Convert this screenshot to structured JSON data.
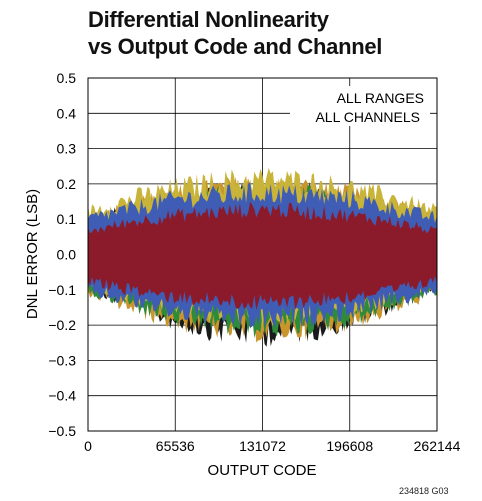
{
  "header": {
    "title_line1": "Differential Nonlinearity",
    "title_line2": "vs Output Code and Channel"
  },
  "figure_id": "234818 G03",
  "chart_data": {
    "type": "area",
    "title": "Differential Nonlinearity vs Output Code and Channel",
    "xlabel": "OUTPUT CODE",
    "ylabel": "DNL ERROR (LSB)",
    "xlim": [
      0,
      262144
    ],
    "ylim": [
      -0.5,
      0.5
    ],
    "x_ticks": [
      "0",
      "65536",
      "131072",
      "196608",
      "262144"
    ],
    "y_ticks": [
      "0.5",
      "0.4",
      "0.3",
      "0.2",
      "0.1",
      "0.0",
      "−0.1",
      "−0.2",
      "−0.3",
      "−0.4",
      "−0.5"
    ],
    "grid": true,
    "annotations": [
      "ALL RANGES",
      "ALL CHANNELS"
    ],
    "series_colors": [
      "#1a1a1a",
      "#c9952c",
      "#2e8b3a",
      "#c9b43a",
      "#3f5db5",
      "#8b1a2b"
    ],
    "series": [
      {
        "x": [
          0,
          32768,
          65536,
          98304,
          131072,
          163840,
          196608,
          229376,
          262144
        ],
        "upper": [
          0.1,
          0.14,
          0.17,
          0.19,
          0.2,
          0.19,
          0.17,
          0.14,
          0.1
        ],
        "lower": [
          -0.1,
          -0.15,
          -0.2,
          -0.23,
          -0.24,
          -0.23,
          -0.2,
          -0.15,
          -0.1
        ]
      },
      {
        "x": [
          0,
          32768,
          65536,
          98304,
          131072,
          163840,
          196608,
          229376,
          262144
        ],
        "upper": [
          0.11,
          0.15,
          0.18,
          0.2,
          0.21,
          0.2,
          0.18,
          0.15,
          0.11
        ],
        "lower": [
          -0.11,
          -0.16,
          -0.2,
          -0.22,
          -0.23,
          -0.22,
          -0.2,
          -0.16,
          -0.11
        ]
      },
      {
        "x": [
          0,
          32768,
          65536,
          98304,
          131072,
          163840,
          196608,
          229376,
          262144
        ],
        "upper": [
          0.1,
          0.14,
          0.16,
          0.18,
          0.19,
          0.18,
          0.16,
          0.14,
          0.1
        ],
        "lower": [
          -0.11,
          -0.15,
          -0.19,
          -0.21,
          -0.22,
          -0.21,
          -0.19,
          -0.15,
          -0.11
        ]
      },
      {
        "x": [
          0,
          32768,
          65536,
          98304,
          131072,
          163840,
          196608,
          229376,
          262144
        ],
        "upper": [
          0.13,
          0.17,
          0.2,
          0.22,
          0.23,
          0.22,
          0.2,
          0.17,
          0.13
        ],
        "lower": [
          -0.09,
          -0.13,
          -0.16,
          -0.18,
          -0.19,
          -0.18,
          -0.16,
          -0.13,
          -0.09
        ]
      },
      {
        "x": [
          0,
          32768,
          65536,
          98304,
          131072,
          163840,
          196608,
          229376,
          262144
        ],
        "upper": [
          0.11,
          0.14,
          0.17,
          0.18,
          0.19,
          0.18,
          0.17,
          0.14,
          0.11
        ],
        "lower": [
          -0.11,
          -0.14,
          -0.17,
          -0.19,
          -0.2,
          -0.19,
          -0.17,
          -0.14,
          -0.11
        ]
      },
      {
        "x": [
          0,
          32768,
          65536,
          98304,
          131072,
          163840,
          196608,
          229376,
          262144
        ],
        "upper": [
          0.07,
          0.1,
          0.12,
          0.13,
          0.14,
          0.13,
          0.12,
          0.1,
          0.07
        ],
        "lower": [
          -0.08,
          -0.11,
          -0.13,
          -0.14,
          -0.15,
          -0.14,
          -0.13,
          -0.11,
          -0.08
        ]
      }
    ]
  }
}
